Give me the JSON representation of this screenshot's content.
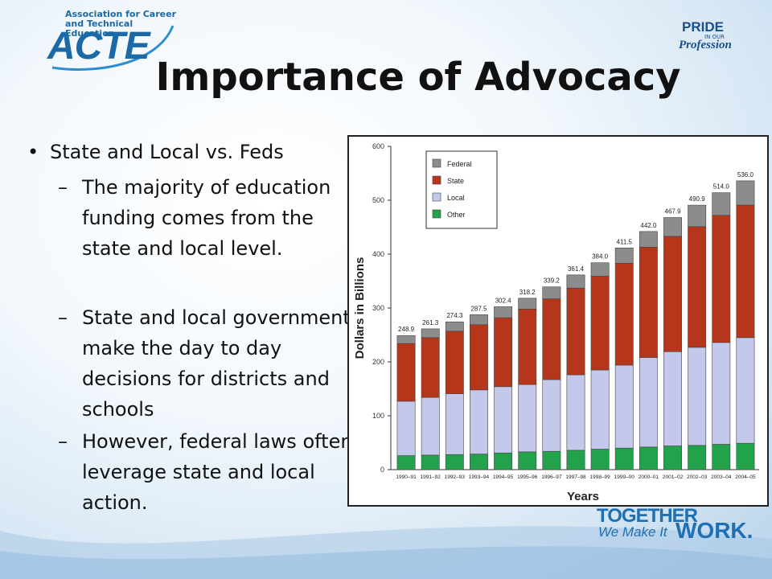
{
  "logos": {
    "acte_sub_line1": "Association for Career",
    "acte_sub_line2": "and Technical Education",
    "acte_main": "ACTE",
    "pride_line1": "PRIDE",
    "pride_line2": "IN OUR",
    "pride_line3": "Profession",
    "together_line1": "TOGETHER",
    "together_line2": "We Make It",
    "together_line3": "WORK."
  },
  "title": "Importance of Advocacy",
  "bullets": {
    "main": "State and Local vs. Feds",
    "sub": [
      "The majority of education funding comes from the state and local level.",
      "State and local governments make the day to day decisions for districts and schools",
      "However, federal laws often leverage state and local action."
    ]
  },
  "colors": {
    "federal": "#8c8c8c",
    "state": "#b5361a",
    "local": "#c4c8ea",
    "other": "#22a24a"
  },
  "chart_data": {
    "type": "bar",
    "stacked": true,
    "xlabel": "Years",
    "ylabel": "Dollars in Billions",
    "ylim": [
      0,
      600
    ],
    "yticks": [
      0,
      100,
      200,
      300,
      400,
      500,
      600
    ],
    "legend_position": "top-left",
    "categories": [
      "1990–91",
      "1991–92",
      "1992–93",
      "1993–94",
      "1994–95",
      "1995–96",
      "1996–97",
      "1997–98",
      "1998–99",
      "1999–00",
      "2000–01",
      "2001–02",
      "2002–03",
      "2003–04",
      "2004–05"
    ],
    "totals": [
      248.9,
      261.3,
      274.3,
      287.5,
      302.4,
      318.2,
      339.2,
      361.4,
      384.0,
      411.5,
      442.0,
      467.9,
      490.9,
      514.0,
      536.0
    ],
    "total_labels": [
      "248.9",
      "261.3",
      "274.3",
      "287.5",
      "302.4",
      "318.2",
      "339.2",
      "361.4",
      "384.0",
      "411.5",
      "442.0",
      "467.9",
      "490.9",
      "514.0",
      "536.0"
    ],
    "series": [
      {
        "name": "Other",
        "values": [
          26,
          27,
          28,
          29,
          31,
          33,
          34,
          36,
          38,
          40,
          42,
          44,
          45,
          47,
          49
        ]
      },
      {
        "name": "Local",
        "values": [
          101,
          107,
          113,
          119,
          123,
          125,
          133,
          140,
          147,
          154,
          166,
          175,
          182,
          189,
          196
        ]
      },
      {
        "name": "State",
        "values": [
          107,
          111,
          116,
          121,
          128,
          140,
          150,
          161,
          174,
          189,
          205,
          214,
          224,
          236,
          246
        ]
      },
      {
        "name": "Federal",
        "values": [
          14.9,
          16.3,
          17.3,
          18.5,
          20.4,
          20.2,
          22.2,
          24.4,
          25.0,
          28.5,
          29.0,
          34.9,
          39.9,
          42.0,
          45.0
        ]
      }
    ],
    "legend": [
      "Federal",
      "State",
      "Local",
      "Other"
    ]
  }
}
